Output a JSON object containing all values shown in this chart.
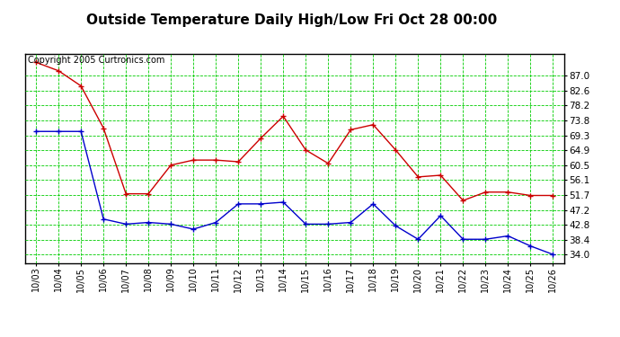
{
  "title": "Outside Temperature Daily High/Low Fri Oct 28 00:00",
  "copyright": "Copyright 2005 Curtronics.com",
  "dates": [
    "10/03",
    "10/04",
    "10/05",
    "10/06",
    "10/07",
    "10/08",
    "10/09",
    "10/10",
    "10/11",
    "10/12",
    "10/13",
    "10/14",
    "10/15",
    "10/16",
    "10/17",
    "10/18",
    "10/19",
    "10/20",
    "10/21",
    "10/22",
    "10/23",
    "10/24",
    "10/25",
    "10/26"
  ],
  "high_values": [
    91.0,
    88.5,
    84.0,
    71.5,
    52.0,
    52.0,
    60.5,
    62.0,
    62.0,
    61.5,
    68.5,
    75.0,
    65.0,
    61.0,
    71.0,
    72.5,
    65.0,
    57.0,
    57.5,
    50.0,
    52.5,
    52.5,
    51.5,
    51.5
  ],
  "low_values": [
    70.5,
    70.5,
    70.5,
    44.5,
    43.0,
    43.5,
    43.0,
    41.5,
    43.5,
    49.0,
    49.0,
    49.5,
    43.0,
    43.0,
    43.5,
    49.0,
    42.5,
    38.5,
    45.5,
    38.5,
    38.5,
    39.5,
    36.5,
    34.0
  ],
  "high_color": "#cc0000",
  "low_color": "#0000cc",
  "bg_color": "#ffffff",
  "grid_color": "#00cc00",
  "border_color": "#000000",
  "title_color": "#000000",
  "yticks": [
    34.0,
    38.4,
    42.8,
    47.2,
    51.7,
    56.1,
    60.5,
    64.9,
    69.3,
    73.8,
    78.2,
    82.6,
    87.0
  ],
  "ylim": [
    31.5,
    93.5
  ],
  "title_fontsize": 11,
  "copyright_fontsize": 7,
  "tick_fontsize": 7.5,
  "xtick_fontsize": 7
}
